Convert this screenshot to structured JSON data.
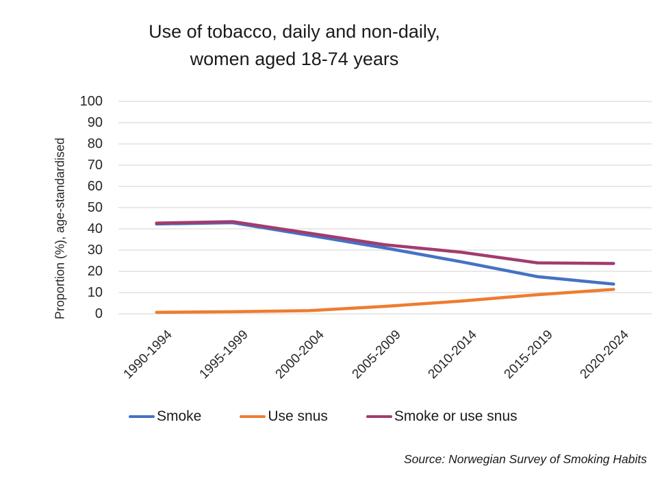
{
  "title": {
    "line1": "Use of tobacco, daily and non-daily,",
    "line2": "women aged 18-74 years"
  },
  "source": "Source: Norwegian Survey of Smoking Habits",
  "chart_data": {
    "type": "line",
    "title": "Use of tobacco, daily and non-daily, women aged 18-74 years",
    "categories": [
      "1990-1994",
      "1995-1999",
      "2000-2004",
      "2005-2009",
      "2010-2014",
      "2015-2019",
      "2020-2024"
    ],
    "series": [
      {
        "name": "Smoke",
        "color": "#4472C4",
        "values": [
          42.3,
          42.9,
          37,
          31,
          24.5,
          17.5,
          14
        ]
      },
      {
        "name": "Use snus",
        "color": "#ED7D31",
        "values": [
          0.7,
          1,
          1.5,
          3.5,
          6,
          9,
          11.5
        ]
      },
      {
        "name": "Smoke or use snus",
        "color": "#A23C6E",
        "values": [
          42.7,
          43.4,
          38,
          32.5,
          29,
          24,
          23.7
        ]
      }
    ],
    "ylabel": "Proportion (%), age-standardised",
    "xlabel": "",
    "ylim": [
      0,
      100
    ],
    "ytick_step": 10,
    "grid": true,
    "gridline_color": "#D9D9D9",
    "legend_position": "bottom"
  }
}
